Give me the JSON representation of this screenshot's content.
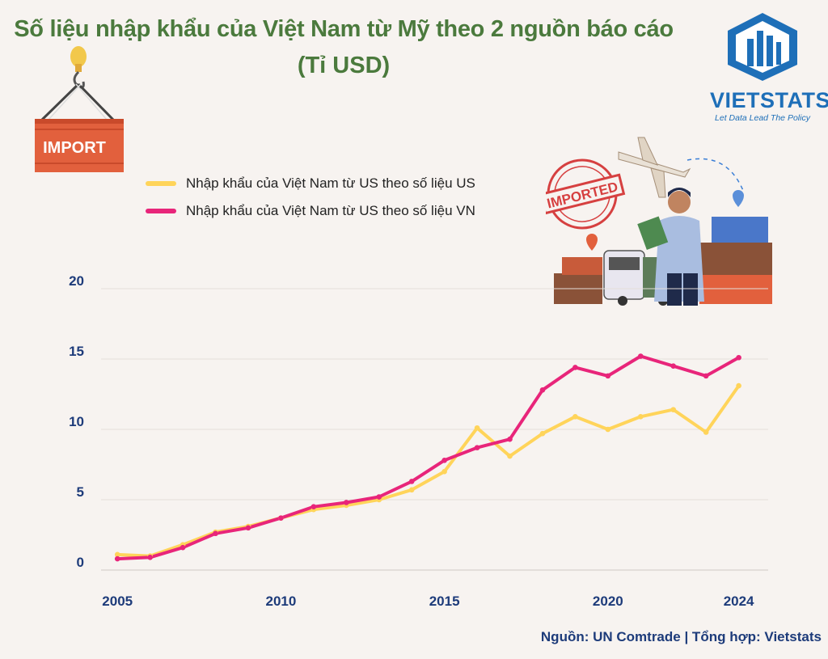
{
  "title_line1": "Số liệu nhập khẩu của Việt Nam từ Mỹ theo 2 nguồn báo cáo",
  "title_line2": "(Tỉ USD)",
  "logo": {
    "brand": "VIETSTATS",
    "tagline": "Let Data Lead The Policy"
  },
  "import_label": "IMPORT",
  "stamp_text": "IMPORTED",
  "source": "Nguồn: UN Comtrade | Tổng hợp: Vietstats",
  "colors": {
    "us": "#ffd45a",
    "vn": "#e8257a",
    "title": "#4b7a3d",
    "axis": "#1d3b7a"
  },
  "chart_data": {
    "type": "line",
    "x": [
      2005,
      2006,
      2007,
      2008,
      2009,
      2010,
      2011,
      2012,
      2013,
      2014,
      2015,
      2016,
      2017,
      2018,
      2019,
      2020,
      2021,
      2022,
      2023,
      2024
    ],
    "x_ticks": [
      2005,
      2010,
      2015,
      2020,
      2024
    ],
    "y_ticks": [
      0,
      5,
      10,
      15,
      20
    ],
    "ylim": [
      0,
      20
    ],
    "grid": true,
    "legend_position": "top-left",
    "series": [
      {
        "name": "Nhập khẩu của Việt Nam từ US theo số liệu US",
        "color": "#ffd45a",
        "values": [
          1.1,
          1.0,
          1.8,
          2.7,
          3.1,
          3.7,
          4.3,
          4.6,
          5.0,
          5.7,
          7.0,
          10.1,
          8.1,
          9.7,
          10.9,
          10.0,
          10.9,
          11.4,
          9.8,
          13.1
        ]
      },
      {
        "name": "Nhập khẩu của Việt Nam từ US theo số liệu VN",
        "color": "#e8257a",
        "values": [
          0.8,
          0.9,
          1.6,
          2.6,
          3.0,
          3.7,
          4.5,
          4.8,
          5.2,
          6.3,
          7.8,
          8.7,
          9.3,
          12.8,
          14.4,
          13.8,
          15.2,
          14.5,
          13.8,
          15.1
        ]
      }
    ]
  }
}
